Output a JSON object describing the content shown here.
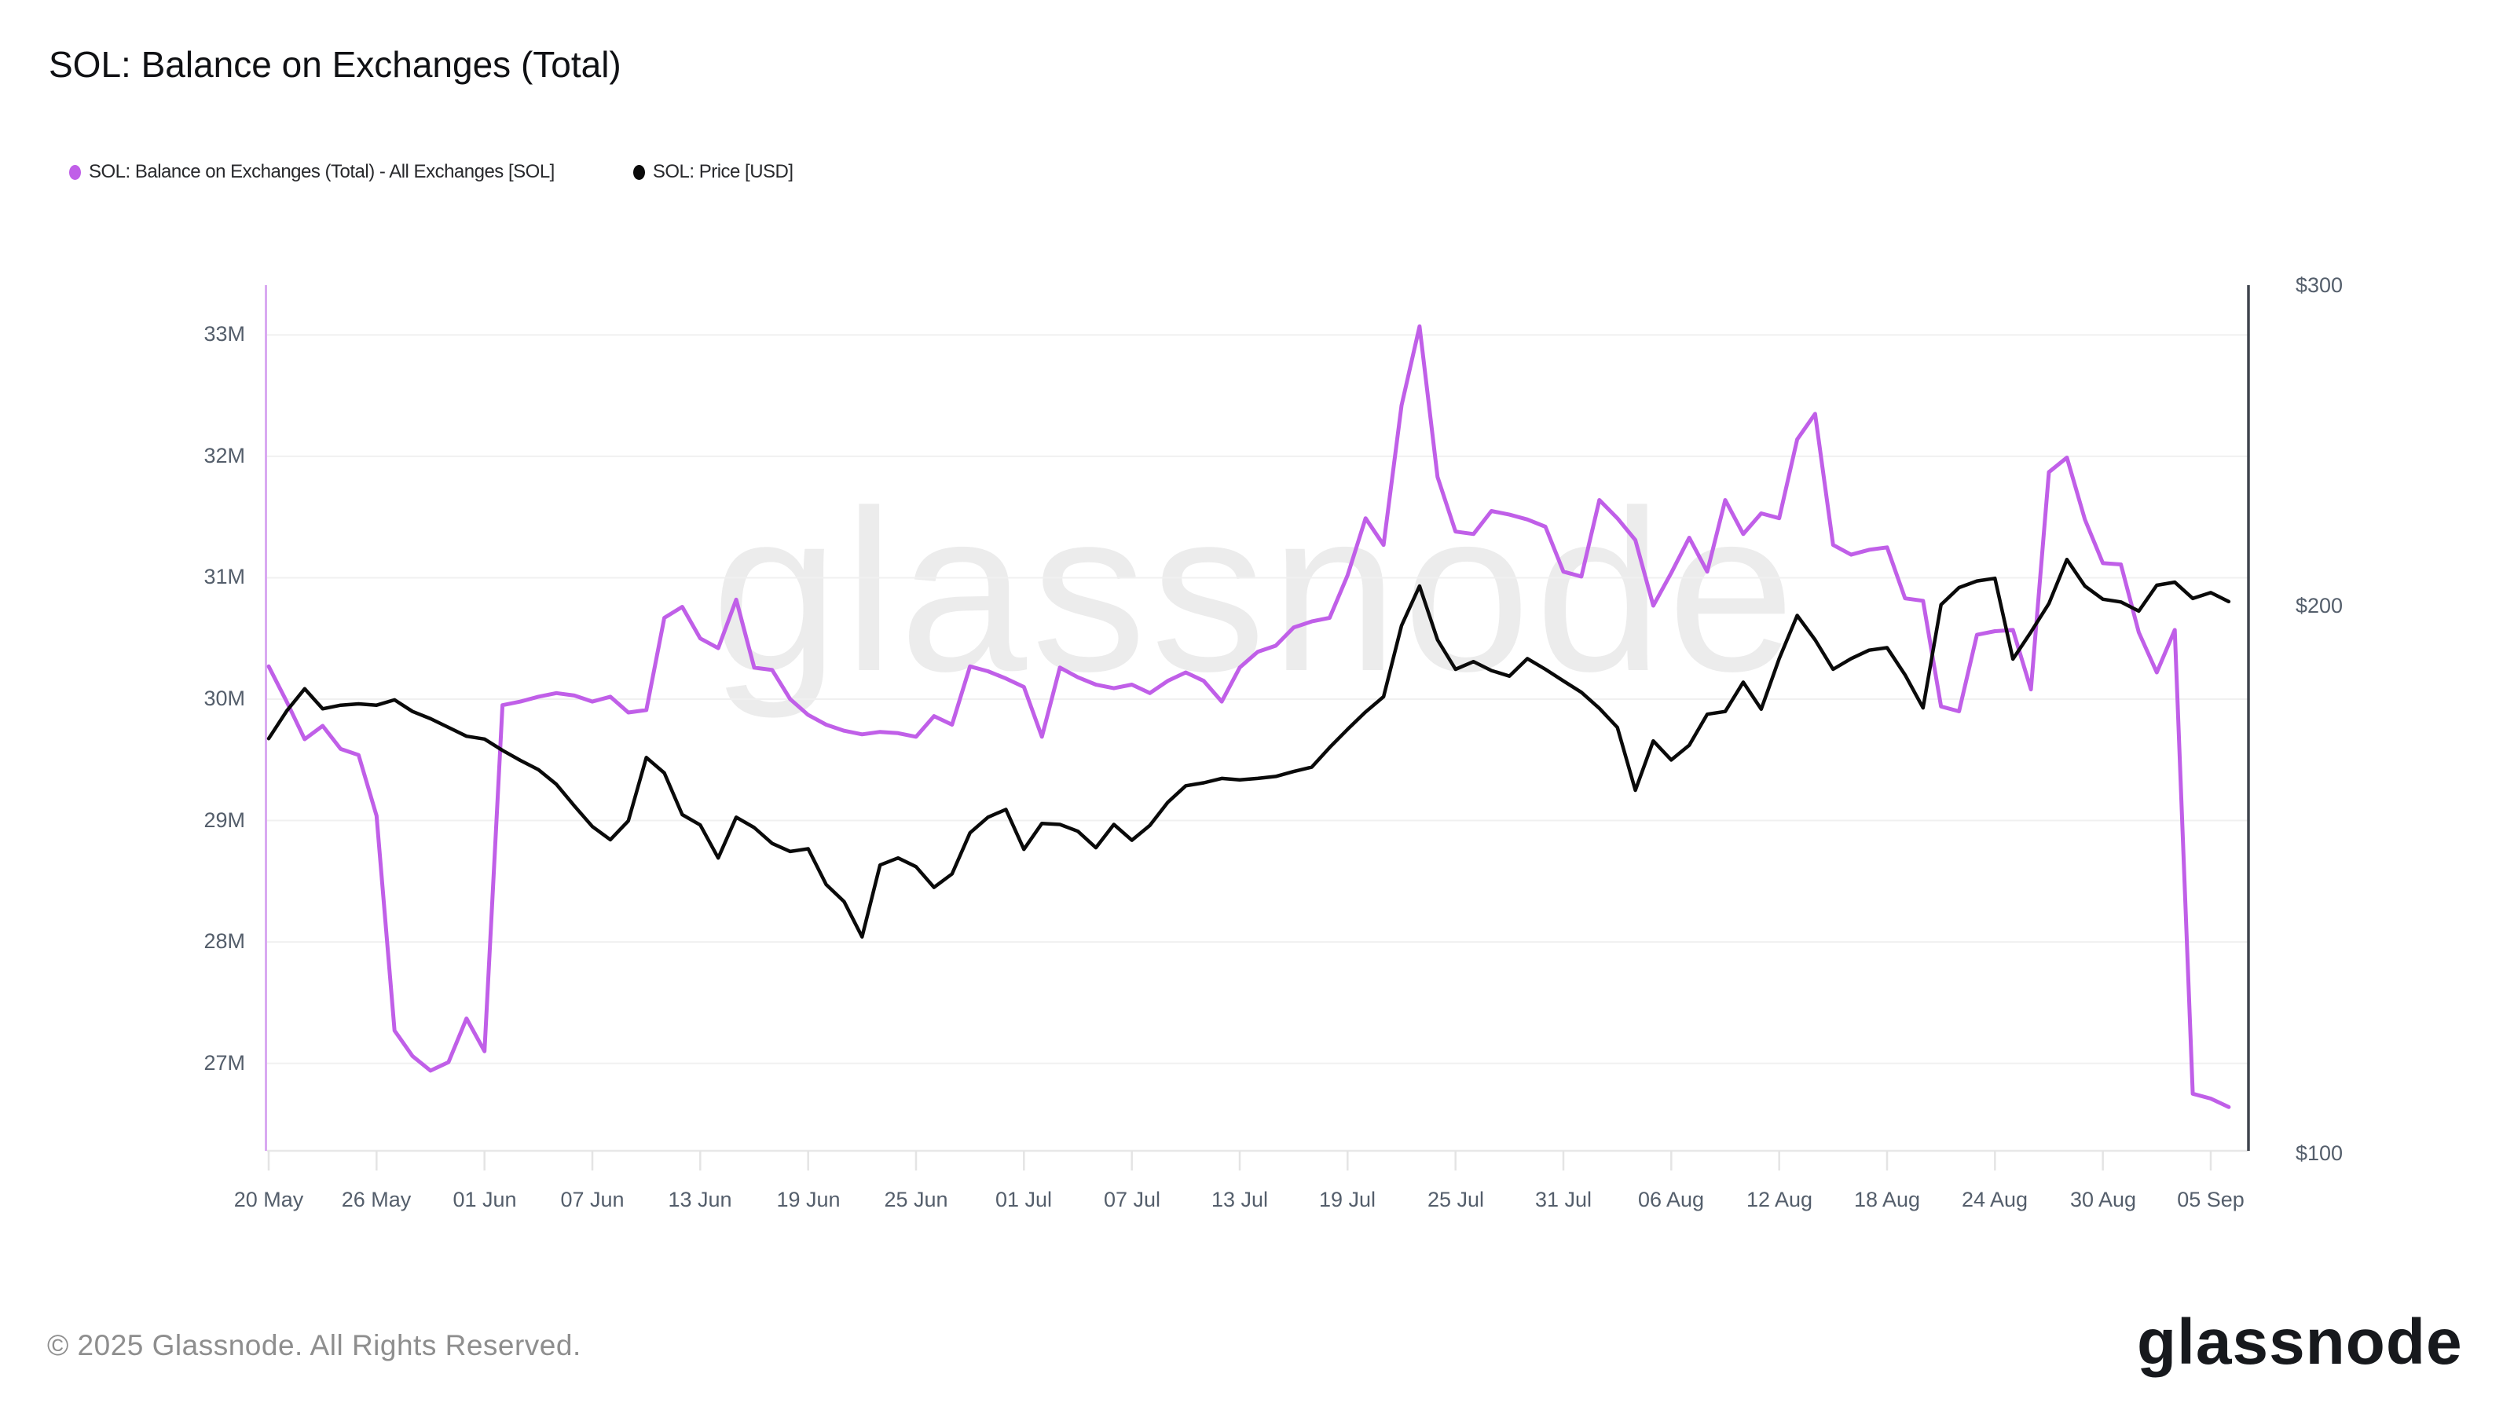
{
  "title": "SOL: Balance on Exchanges (Total)",
  "legend": [
    {
      "label": "SOL: Balance on Exchanges (Total) - All Exchanges [SOL]",
      "color": "#c05fe8"
    },
    {
      "label": "SOL: Price [USD]",
      "color": "#0a0a0a"
    }
  ],
  "watermark_text": "glassnode",
  "footer": {
    "copyright": "© 2025 Glassnode. All Rights Reserved.",
    "logo_text": "glassnode"
  },
  "colors": {
    "balance_line": "#c05fe8",
    "price_line": "#0a0a0a",
    "left_axis_line": "#d9a9f1",
    "right_axis_line": "#40454e",
    "gridline": "#f0f0f0",
    "x_baseline": "#e8e8e8",
    "tick": "#e4e4e4",
    "axis_text": "#545e6b"
  },
  "chart_data": {
    "type": "line",
    "title": "SOL: Balance on Exchanges (Total)",
    "grid": "horizontal-only",
    "legend_position": "top-left",
    "x_tick_labels": [
      "20 May",
      "26 May",
      "01 Jun",
      "07 Jun",
      "13 Jun",
      "19 Jun",
      "25 Jun",
      "01 Jul",
      "07 Jul",
      "13 Jul",
      "19 Jul",
      "25 Jul",
      "31 Jul",
      "06 Aug",
      "12 Aug",
      "18 Aug",
      "24 Aug",
      "30 Aug",
      "05 Sep"
    ],
    "x_tick_day_indices": [
      0,
      6,
      12,
      18,
      24,
      30,
      36,
      42,
      48,
      54,
      60,
      66,
      72,
      78,
      84,
      90,
      96,
      102,
      108
    ],
    "x_start_label": "20 May",
    "x_end_label": "05 Sep",
    "days_total": 110,
    "left_axis": {
      "tick_labels": [
        "33M",
        "32M",
        "31M",
        "30M",
        "29M",
        "28M",
        "27M"
      ],
      "tick_values": [
        33,
        32,
        31,
        30,
        29,
        28,
        27
      ],
      "units": "SOL (millions)",
      "scale": "linear",
      "ylim": [
        26.26,
        33.41
      ]
    },
    "right_axis": {
      "tick_labels": [
        "$300",
        "$200",
        "$100"
      ],
      "tick_values": [
        300,
        200,
        100
      ],
      "units": "USD",
      "scale": "log",
      "ylim": [
        100,
        300
      ]
    },
    "series": [
      {
        "name": "SOL: Balance on Exchanges (Total) - All Exchanges [SOL]",
        "axis": "left",
        "color": "#c05fe8",
        "values": [
          30.27,
          29.98,
          29.67,
          29.78,
          29.59,
          29.54,
          29.04,
          27.27,
          27.06,
          26.94,
          27.01,
          27.37,
          27.1,
          29.95,
          29.98,
          30.02,
          30.05,
          30.03,
          29.98,
          30.02,
          29.89,
          29.91,
          30.67,
          30.76,
          30.5,
          30.42,
          30.82,
          30.26,
          30.24,
          30.0,
          29.87,
          29.79,
          29.74,
          29.71,
          29.73,
          29.72,
          29.69,
          29.86,
          29.79,
          30.27,
          30.23,
          30.17,
          30.1,
          29.69,
          30.26,
          30.18,
          30.12,
          30.09,
          30.12,
          30.05,
          30.15,
          30.22,
          30.15,
          29.98,
          30.26,
          30.39,
          30.44,
          30.59,
          30.64,
          30.67,
          31.02,
          31.49,
          31.27,
          32.42,
          33.07,
          31.83,
          31.38,
          31.36,
          31.55,
          31.52,
          31.48,
          31.42,
          31.05,
          31.01,
          31.64,
          31.49,
          31.31,
          30.77,
          31.04,
          31.33,
          31.05,
          31.64,
          31.36,
          31.53,
          31.49,
          32.14,
          32.35,
          31.27,
          31.19,
          31.23,
          31.25,
          30.83,
          30.81,
          29.94,
          29.9,
          30.53,
          30.56,
          30.57,
          30.08,
          31.87,
          31.99,
          31.48,
          31.12,
          31.11,
          30.55,
          30.22,
          30.57,
          26.75,
          26.71,
          26.64
        ]
      },
      {
        "name": "SOL: Price [USD]",
        "axis": "right",
        "color": "#0a0a0a",
        "values": [
          169,
          175,
          180,
          175.5,
          176.3,
          176.6,
          176.3,
          177.5,
          174.9,
          173.3,
          171.4,
          169.5,
          168.9,
          166.5,
          164.4,
          162.5,
          159.5,
          155.2,
          151.2,
          148.7,
          152.3,
          165.0,
          161.8,
          153.5,
          151.5,
          145.3,
          153.0,
          151.0,
          148.0,
          146.5,
          147.0,
          140.5,
          137.5,
          131.5,
          144.0,
          145.3,
          143.7,
          140.0,
          142.4,
          150.0,
          153.0,
          154.5,
          146.9,
          151.8,
          151.6,
          150.3,
          147.2,
          151.6,
          148.6,
          151.4,
          155.9,
          159.2,
          159.8,
          160.7,
          160.4,
          160.7,
          161.1,
          162.1,
          163.0,
          167.1,
          171.0,
          174.8,
          178.2,
          195.0,
          205.0,
          191.5,
          184.5,
          186.3,
          184.2,
          182.9,
          187.0,
          184.5,
          181.8,
          179.2,
          175.6,
          171.4,
          158.3,
          168.5,
          164.5,
          167.6,
          174.3,
          174.9,
          181.5,
          175.4,
          187.0,
          197.5,
          191.5,
          184.5,
          187.0,
          189.0,
          189.6,
          183.2,
          175.7,
          200.2,
          204.6,
          206.3,
          207.0,
          186.9,
          193.4,
          200.5,
          212.0,
          205.0,
          201.6,
          200.9,
          198.6,
          205.2,
          206.0,
          201.8,
          203.3,
          201.0
        ]
      }
    ]
  }
}
